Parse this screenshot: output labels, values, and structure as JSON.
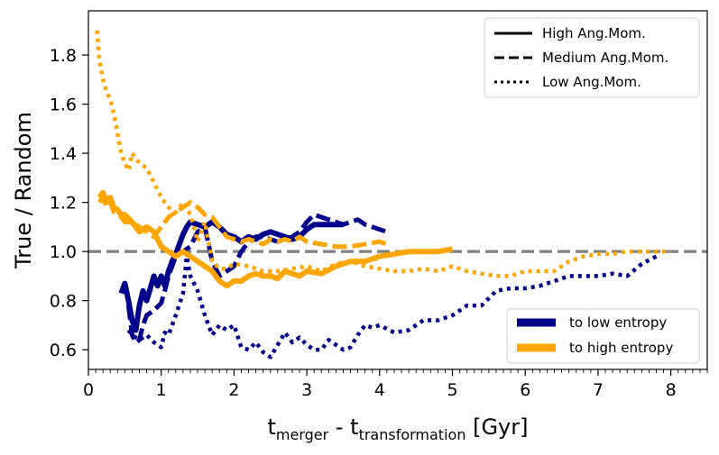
{
  "chart_data": {
    "type": "line",
    "xlabel": {
      "main": "t",
      "sub1": "merger",
      "mid": " - t",
      "sub2": "transformation",
      "unit": " [Gyr]"
    },
    "ylabel": "True / Random",
    "xlim": [
      0,
      8.5
    ],
    "ylim": [
      0.52,
      1.98
    ],
    "xticks": [
      0,
      1,
      2,
      3,
      4,
      5,
      6,
      7,
      8
    ],
    "yticks": [
      0.6,
      0.8,
      1.0,
      1.2,
      1.4,
      1.6,
      1.8
    ],
    "xtick_labels": [
      "0",
      "1",
      "2",
      "3",
      "4",
      "5",
      "6",
      "7",
      "8"
    ],
    "ytick_labels": [
      "0.6",
      "0.8",
      "1.0",
      "1.2",
      "1.4",
      "1.6",
      "1.8"
    ],
    "reference_line": {
      "y": 1.0,
      "style": "dashed",
      "color": "#808080"
    },
    "colors": {
      "low_entropy": "#00008b",
      "high_entropy": "#ffa500"
    },
    "legend_style": {
      "placement": "top-right",
      "entries": [
        {
          "label": "High Ang.Mom.",
          "style": "solid"
        },
        {
          "label": "Medium Ang.Mom.",
          "style": "dashed"
        },
        {
          "label": "Low Ang.Mom.",
          "style": "dotted"
        }
      ]
    },
    "legend_color": {
      "placement": "lower-right",
      "entries": [
        {
          "label": "to low entropy",
          "color": "#00008b"
        },
        {
          "label": "to high entropy",
          "color": "#ffa500"
        }
      ]
    },
    "series": [
      {
        "color": "#00008b",
        "style": "solid",
        "x": [
          0.45,
          0.5,
          0.55,
          0.6,
          0.65,
          0.7,
          0.75,
          0.8,
          0.85,
          0.9,
          0.95,
          1.0,
          1.05,
          1.1,
          1.15,
          1.2,
          1.25,
          1.3,
          1.35,
          1.4,
          1.5,
          1.6,
          1.7,
          1.8,
          1.9,
          2.0,
          2.1,
          2.2,
          2.3,
          2.4,
          2.5,
          2.6,
          2.7,
          2.8,
          2.9,
          3.0,
          3.1,
          3.2,
          3.3,
          3.4,
          3.5
        ],
        "y": [
          0.83,
          0.87,
          0.8,
          0.72,
          0.68,
          0.78,
          0.84,
          0.8,
          0.85,
          0.9,
          0.86,
          0.9,
          0.86,
          0.92,
          0.96,
          0.99,
          1.03,
          1.07,
          1.1,
          1.12,
          1.11,
          1.1,
          1.12,
          1.1,
          1.07,
          1.06,
          1.04,
          1.06,
          1.05,
          1.07,
          1.08,
          1.07,
          1.06,
          1.05,
          1.06,
          1.09,
          1.11,
          1.11,
          1.11,
          1.11,
          1.11
        ]
      },
      {
        "color": "#00008b",
        "style": "dashed",
        "x": [
          0.55,
          0.6,
          0.65,
          0.7,
          0.75,
          0.8,
          0.9,
          1.0,
          1.05,
          1.1,
          1.2,
          1.3,
          1.4,
          1.5,
          1.6,
          1.7,
          1.8,
          1.9,
          2.0,
          2.1,
          2.2,
          2.3,
          2.4,
          2.5,
          2.6,
          2.7,
          2.8,
          2.9,
          3.0,
          3.1,
          3.2,
          3.3,
          3.4,
          3.5,
          3.6,
          3.7,
          3.8,
          3.9,
          4.0,
          4.1
        ],
        "y": [
          0.78,
          0.66,
          0.63,
          0.64,
          0.7,
          0.74,
          0.76,
          0.79,
          0.84,
          0.9,
          0.98,
          1.0,
          1.02,
          1.08,
          1.1,
          0.96,
          0.9,
          0.92,
          0.94,
          1.0,
          1.04,
          1.06,
          1.06,
          1.05,
          1.04,
          1.05,
          1.06,
          1.08,
          1.12,
          1.15,
          1.14,
          1.13,
          1.12,
          1.11,
          1.12,
          1.13,
          1.11,
          1.1,
          1.09,
          1.08
        ]
      },
      {
        "color": "#00008b",
        "style": "dotted",
        "x": [
          0.55,
          0.6,
          0.7,
          0.8,
          0.9,
          1.0,
          1.05,
          1.1,
          1.2,
          1.3,
          1.35,
          1.4,
          1.5,
          1.6,
          1.7,
          1.8,
          1.9,
          2.0,
          2.1,
          2.2,
          2.3,
          2.4,
          2.5,
          2.6,
          2.7,
          2.8,
          2.9,
          3.0,
          3.1,
          3.2,
          3.3,
          3.4,
          3.5,
          3.6,
          3.7,
          3.8,
          3.9,
          4.0,
          4.2,
          4.4,
          4.6,
          4.8,
          5.0,
          5.2,
          5.4,
          5.6,
          5.8,
          6.0,
          6.2,
          6.4,
          6.6,
          6.8,
          7.0,
          7.2,
          7.4,
          7.6,
          7.8
        ],
        "y": [
          0.68,
          0.66,
          0.64,
          0.66,
          0.63,
          0.61,
          0.67,
          0.66,
          0.74,
          0.83,
          0.98,
          0.9,
          0.84,
          0.74,
          0.66,
          0.7,
          0.68,
          0.7,
          0.61,
          0.6,
          0.63,
          0.59,
          0.57,
          0.62,
          0.67,
          0.63,
          0.65,
          0.62,
          0.6,
          0.6,
          0.64,
          0.62,
          0.6,
          0.61,
          0.66,
          0.7,
          0.69,
          0.7,
          0.67,
          0.68,
          0.72,
          0.72,
          0.74,
          0.78,
          0.78,
          0.84,
          0.85,
          0.85,
          0.86,
          0.88,
          0.9,
          0.9,
          0.9,
          0.91,
          0.9,
          0.95,
          0.98
        ]
      },
      {
        "color": "#ffa500",
        "style": "solid",
        "x": [
          0.15,
          0.2,
          0.25,
          0.3,
          0.35,
          0.4,
          0.45,
          0.5,
          0.6,
          0.7,
          0.8,
          0.9,
          1.0,
          1.1,
          1.2,
          1.3,
          1.4,
          1.5,
          1.6,
          1.7,
          1.8,
          1.9,
          2.0,
          2.1,
          2.2,
          2.3,
          2.4,
          2.5,
          2.6,
          2.7,
          2.8,
          2.9,
          3.0,
          3.2,
          3.4,
          3.6,
          3.8,
          4.0,
          4.2,
          4.4,
          4.6,
          4.8,
          5.0
        ],
        "y": [
          1.22,
          1.24,
          1.2,
          1.22,
          1.18,
          1.17,
          1.15,
          1.15,
          1.12,
          1.08,
          1.1,
          1.08,
          1.02,
          1.0,
          0.98,
          1.0,
          0.98,
          0.96,
          0.94,
          0.92,
          0.88,
          0.86,
          0.88,
          0.88,
          0.9,
          0.91,
          0.9,
          0.9,
          0.89,
          0.92,
          0.91,
          0.9,
          0.92,
          0.91,
          0.94,
          0.96,
          0.96,
          0.98,
          0.99,
          1.0,
          1.0,
          1.0,
          1.01
        ]
      },
      {
        "color": "#ffa500",
        "style": "dashed",
        "x": [
          0.15,
          0.2,
          0.25,
          0.3,
          0.35,
          0.4,
          0.45,
          0.5,
          0.6,
          0.7,
          0.8,
          0.9,
          1.0,
          1.1,
          1.2,
          1.3,
          1.4,
          1.5,
          1.6,
          1.7,
          1.8,
          1.9,
          2.0,
          2.1,
          2.2,
          2.3,
          2.4,
          2.5,
          2.6,
          2.7,
          2.8,
          2.9,
          3.0,
          3.2,
          3.4,
          3.6,
          3.8,
          4.0,
          4.1
        ],
        "y": [
          1.2,
          1.22,
          1.18,
          1.2,
          1.16,
          1.15,
          1.14,
          1.12,
          1.12,
          1.1,
          1.08,
          1.06,
          1.1,
          1.14,
          1.16,
          1.18,
          1.2,
          1.18,
          1.15,
          1.14,
          1.1,
          1.06,
          1.05,
          1.04,
          1.05,
          1.04,
          1.03,
          1.05,
          1.04,
          1.05,
          1.04,
          1.06,
          1.04,
          1.03,
          1.02,
          1.02,
          1.03,
          1.04,
          1.03
        ]
      },
      {
        "color": "#ffa500",
        "style": "dotted",
        "x": [
          0.12,
          0.15,
          0.2,
          0.25,
          0.3,
          0.35,
          0.4,
          0.45,
          0.5,
          0.55,
          0.6,
          0.7,
          0.8,
          0.9,
          1.0,
          1.1,
          1.2,
          1.3,
          1.4,
          1.5,
          1.6,
          1.7,
          1.8,
          1.9,
          2.0,
          2.2,
          2.4,
          2.6,
          2.8,
          3.0,
          3.2,
          3.4,
          3.6,
          3.8,
          4.0,
          4.2,
          4.4,
          4.6,
          4.8,
          5.0,
          5.2,
          5.4,
          5.6,
          5.8,
          6.0,
          6.2,
          6.4,
          6.6,
          6.8,
          7.0,
          7.2,
          7.4,
          7.6,
          7.8,
          8.0
        ],
        "y": [
          1.9,
          1.78,
          1.7,
          1.65,
          1.62,
          1.56,
          1.48,
          1.4,
          1.36,
          1.33,
          1.4,
          1.36,
          1.34,
          1.28,
          1.22,
          1.18,
          1.16,
          1.2,
          1.15,
          1.04,
          1.12,
          0.96,
          0.93,
          0.93,
          0.95,
          0.94,
          0.92,
          0.92,
          0.93,
          0.94,
          0.92,
          0.95,
          0.96,
          0.94,
          0.93,
          0.92,
          0.92,
          0.93,
          0.92,
          0.94,
          0.92,
          0.91,
          0.9,
          0.9,
          0.92,
          0.92,
          0.92,
          0.96,
          0.98,
          0.99,
          0.99,
          1.0,
          1.0,
          1.0,
          1.0
        ]
      }
    ]
  }
}
